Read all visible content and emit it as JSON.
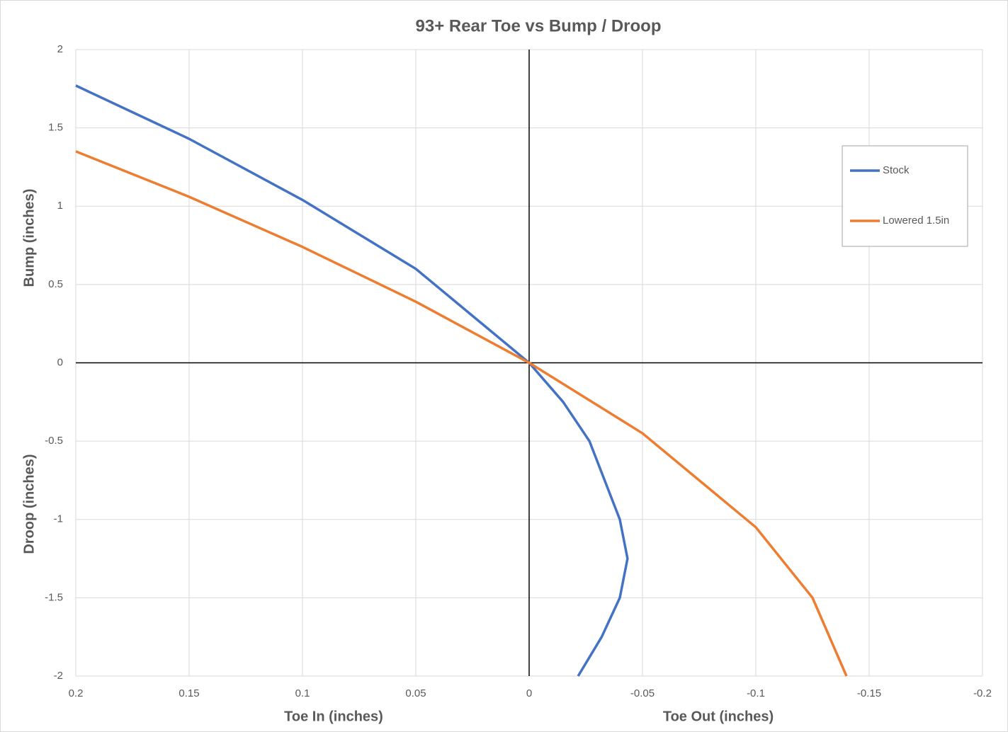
{
  "chart_data": {
    "type": "line",
    "title": "93+ Rear Toe vs Bump / Droop",
    "x_label_left": "Toe In (inches)",
    "x_label_right": "Toe Out (inches)",
    "y_label_top": "Bump (inches)",
    "y_label_bottom": "Droop (inches)",
    "xlim": [
      0.2,
      -0.2
    ],
    "ylim": [
      -2,
      2
    ],
    "xticks": [
      0.2,
      0.15,
      0.1,
      0.05,
      0,
      -0.05,
      -0.1,
      -0.15,
      -0.2
    ],
    "yticks": [
      2,
      1.5,
      1,
      0.5,
      0,
      -0.5,
      -1,
      -1.5,
      -2
    ],
    "grid": true,
    "legend": "right",
    "series": [
      {
        "name": "Stock",
        "color": "#4472c4",
        "x": [
          0.2,
          0.175,
          0.15,
          0.1,
          0.05,
          0.025,
          0,
          -0.015,
          -0.0266,
          -0.04,
          -0.0434,
          -0.04,
          -0.032,
          -0.0216
        ],
        "values": [
          1.77,
          1.6,
          1.43,
          1.04,
          0.6,
          0.3,
          0,
          -0.25,
          -0.5,
          -1,
          -1.25,
          -1.5,
          -1.75,
          -2
        ]
      },
      {
        "name": "Lowered 1.5in",
        "color": "#ed7d31",
        "x": [
          0.2,
          0.15,
          0.1,
          0.05,
          0,
          -0.05,
          -0.1,
          -0.125,
          -0.128,
          -0.14
        ],
        "values": [
          1.35,
          1.06,
          0.74,
          0.39,
          0,
          -0.45,
          -1.05,
          -1.5,
          -1.6,
          -2
        ]
      }
    ]
  }
}
